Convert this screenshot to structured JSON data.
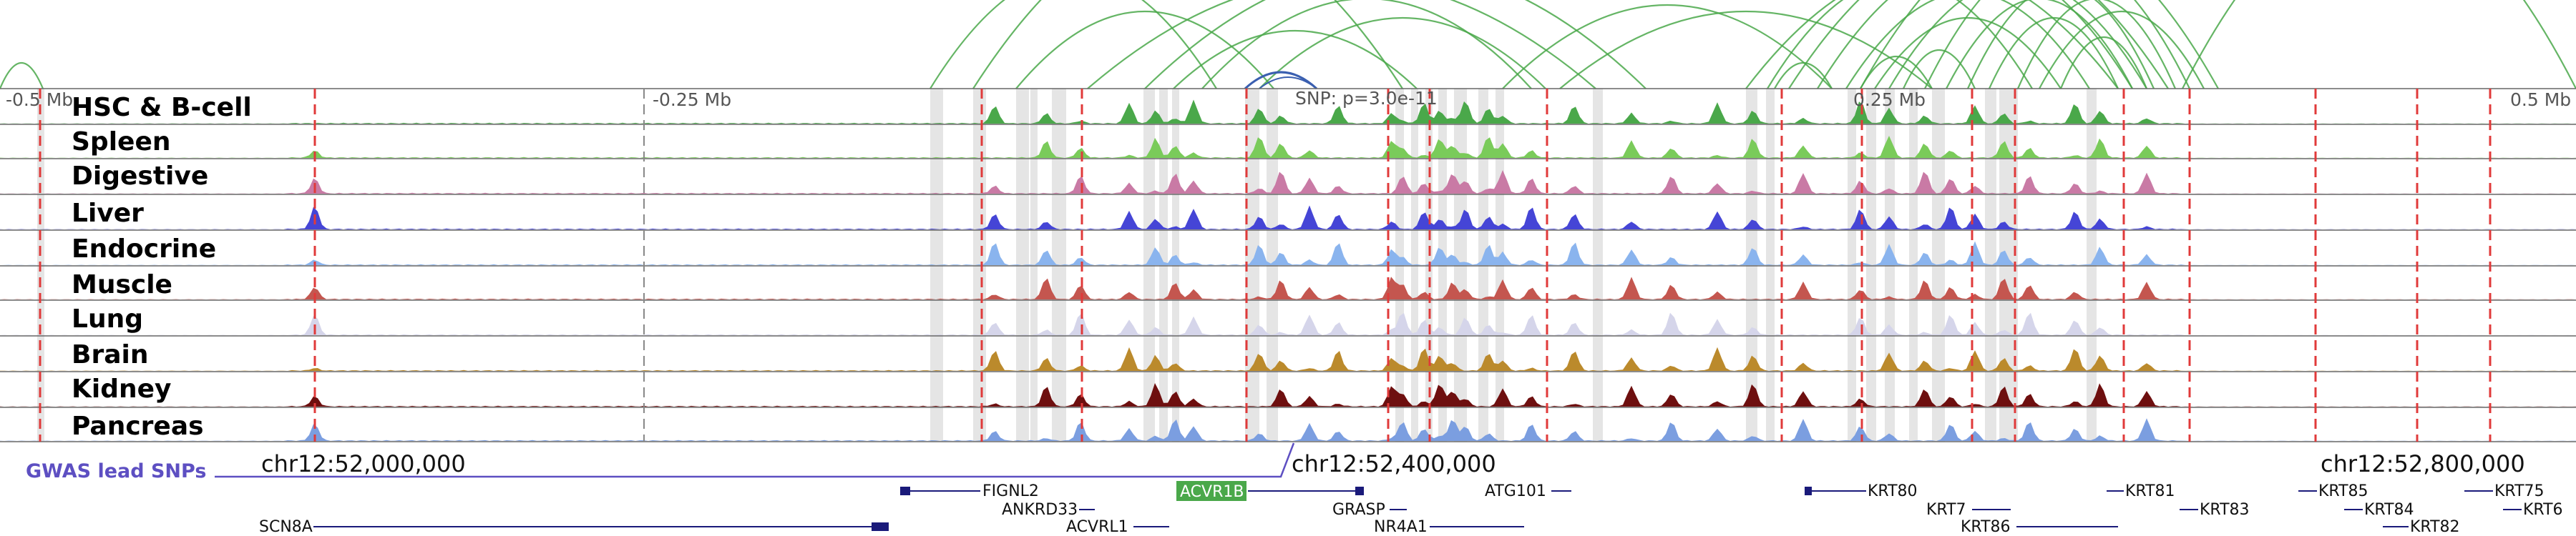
{
  "axis": {
    "ticks": [
      "-0.5 Mb",
      "-0.25 Mb",
      "0.25 Mb",
      "0.5 Mb"
    ],
    "snp_label": "SNP: p=3.0e-11"
  },
  "tracks": [
    {
      "label": "HSC & B-cell",
      "color": "#4aa84a"
    },
    {
      "label": "Spleen",
      "color": "#7acb5a"
    },
    {
      "label": "Digestive",
      "color": "#c97aa5"
    },
    {
      "label": "Liver",
      "color": "#4545d6"
    },
    {
      "label": "Endocrine",
      "color": "#8ab4ee"
    },
    {
      "label": "Muscle",
      "color": "#c4564f"
    },
    {
      "label": "Lung",
      "color": "#d5d5ea"
    },
    {
      "label": "Brain",
      "color": "#bb8a2c"
    },
    {
      "label": "Kidney",
      "color": "#6e0f0f"
    },
    {
      "label": "Pancreas",
      "color": "#7b9ee0"
    }
  ],
  "coordinates": [
    "chr12:52,000,000",
    "chr12:52,400,000",
    "chr12:52,800,000"
  ],
  "gwas_label": "GWAS lead SNPs",
  "genes": [
    {
      "name": "FIGNL2",
      "strand": "-"
    },
    {
      "name": "ACVR1B",
      "strand": "+",
      "highlight": true
    },
    {
      "name": "ATG101",
      "strand": "+"
    },
    {
      "name": "KRT80",
      "strand": "-"
    },
    {
      "name": "KRT81",
      "strand": "-"
    },
    {
      "name": "KRT85",
      "strand": "-"
    },
    {
      "name": "KRT75",
      "strand": "-"
    },
    {
      "name": "ANKRD33",
      "strand": "+"
    },
    {
      "name": "GRASP",
      "strand": "+"
    },
    {
      "name": "KRT7",
      "strand": "+"
    },
    {
      "name": "KRT83",
      "strand": "-"
    },
    {
      "name": "KRT84",
      "strand": "-"
    },
    {
      "name": "KRT6",
      "strand": "-"
    },
    {
      "name": "SCN8A",
      "strand": "+"
    },
    {
      "name": "ACVRL1",
      "strand": "+"
    },
    {
      "name": "NR4A1",
      "strand": "+"
    },
    {
      "name": "KRT86",
      "strand": "+"
    },
    {
      "name": "KRT82",
      "strand": "-"
    }
  ],
  "colors": {
    "loop": "#4aa84a",
    "snp_loop": "#3a5fb0",
    "dash": "#e03a3a",
    "gwas": "#5d4fc2",
    "gene": "#1a1a7a",
    "highlight": "#4aa84a"
  }
}
